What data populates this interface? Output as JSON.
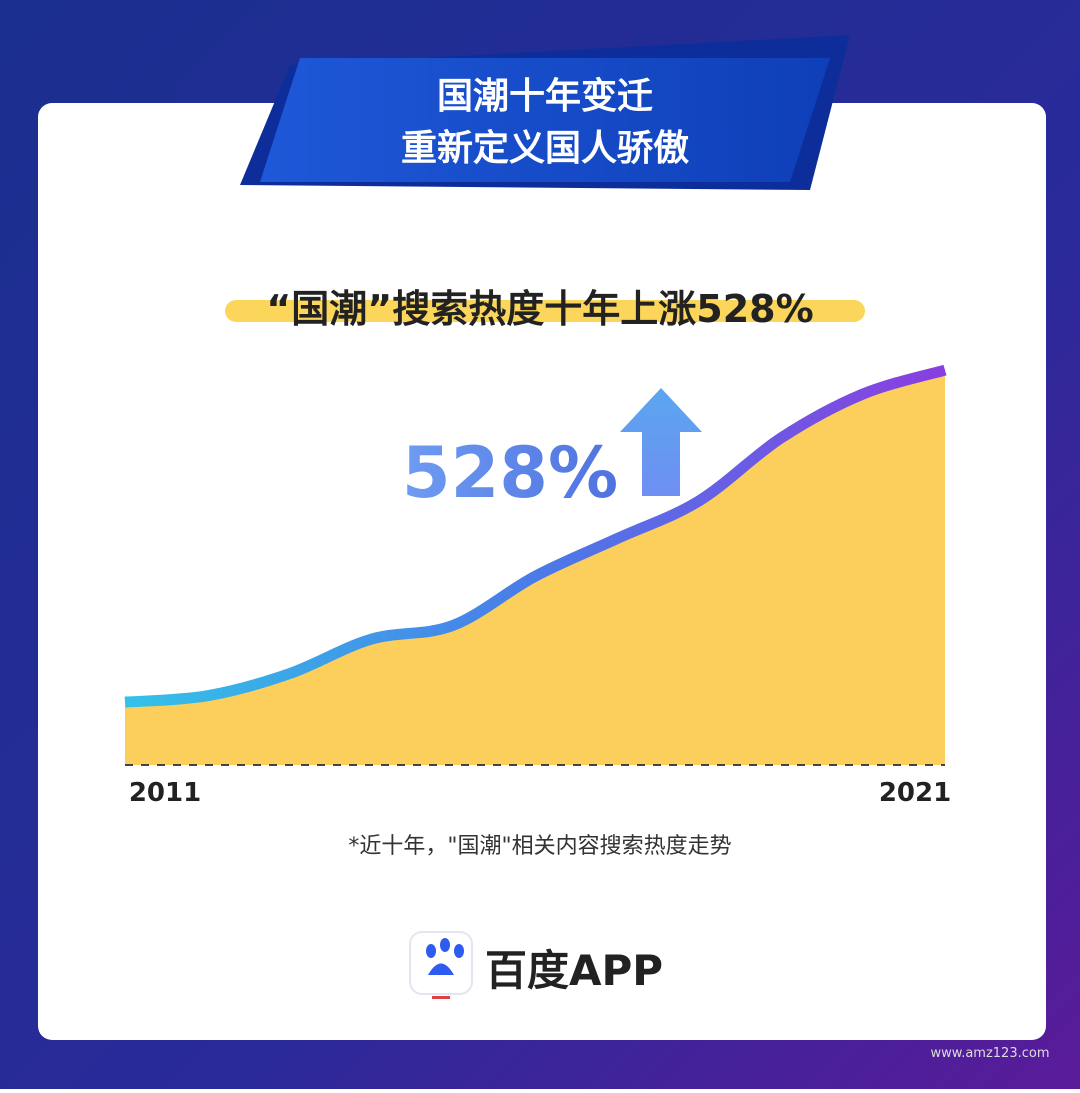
{
  "header": {
    "title_line1": "国潮十年变迁",
    "title_line2": "重新定义国人骄傲"
  },
  "chart_data": {
    "type": "line",
    "title": "“国潮”搜索热度十年上涨528%",
    "annotation": "528%",
    "categories": [
      "2011",
      null,
      null,
      null,
      null,
      null,
      null,
      null,
      null,
      null,
      "2021"
    ],
    "series": [
      {
        "name": null,
        "color": "#5b7cf0",
        "values": [
          100,
          110,
          145,
          200,
          222,
          300,
          360,
          420,
          520,
          590,
          628
        ]
      }
    ],
    "ylim": [
      0,
      660
    ],
    "area_color": "#fcc94a",
    "note": "*近十年，\"国潮\"相关内容搜索热度走势"
  },
  "footer": {
    "brand": "百度APP",
    "watermark": "www.amz123.com"
  }
}
